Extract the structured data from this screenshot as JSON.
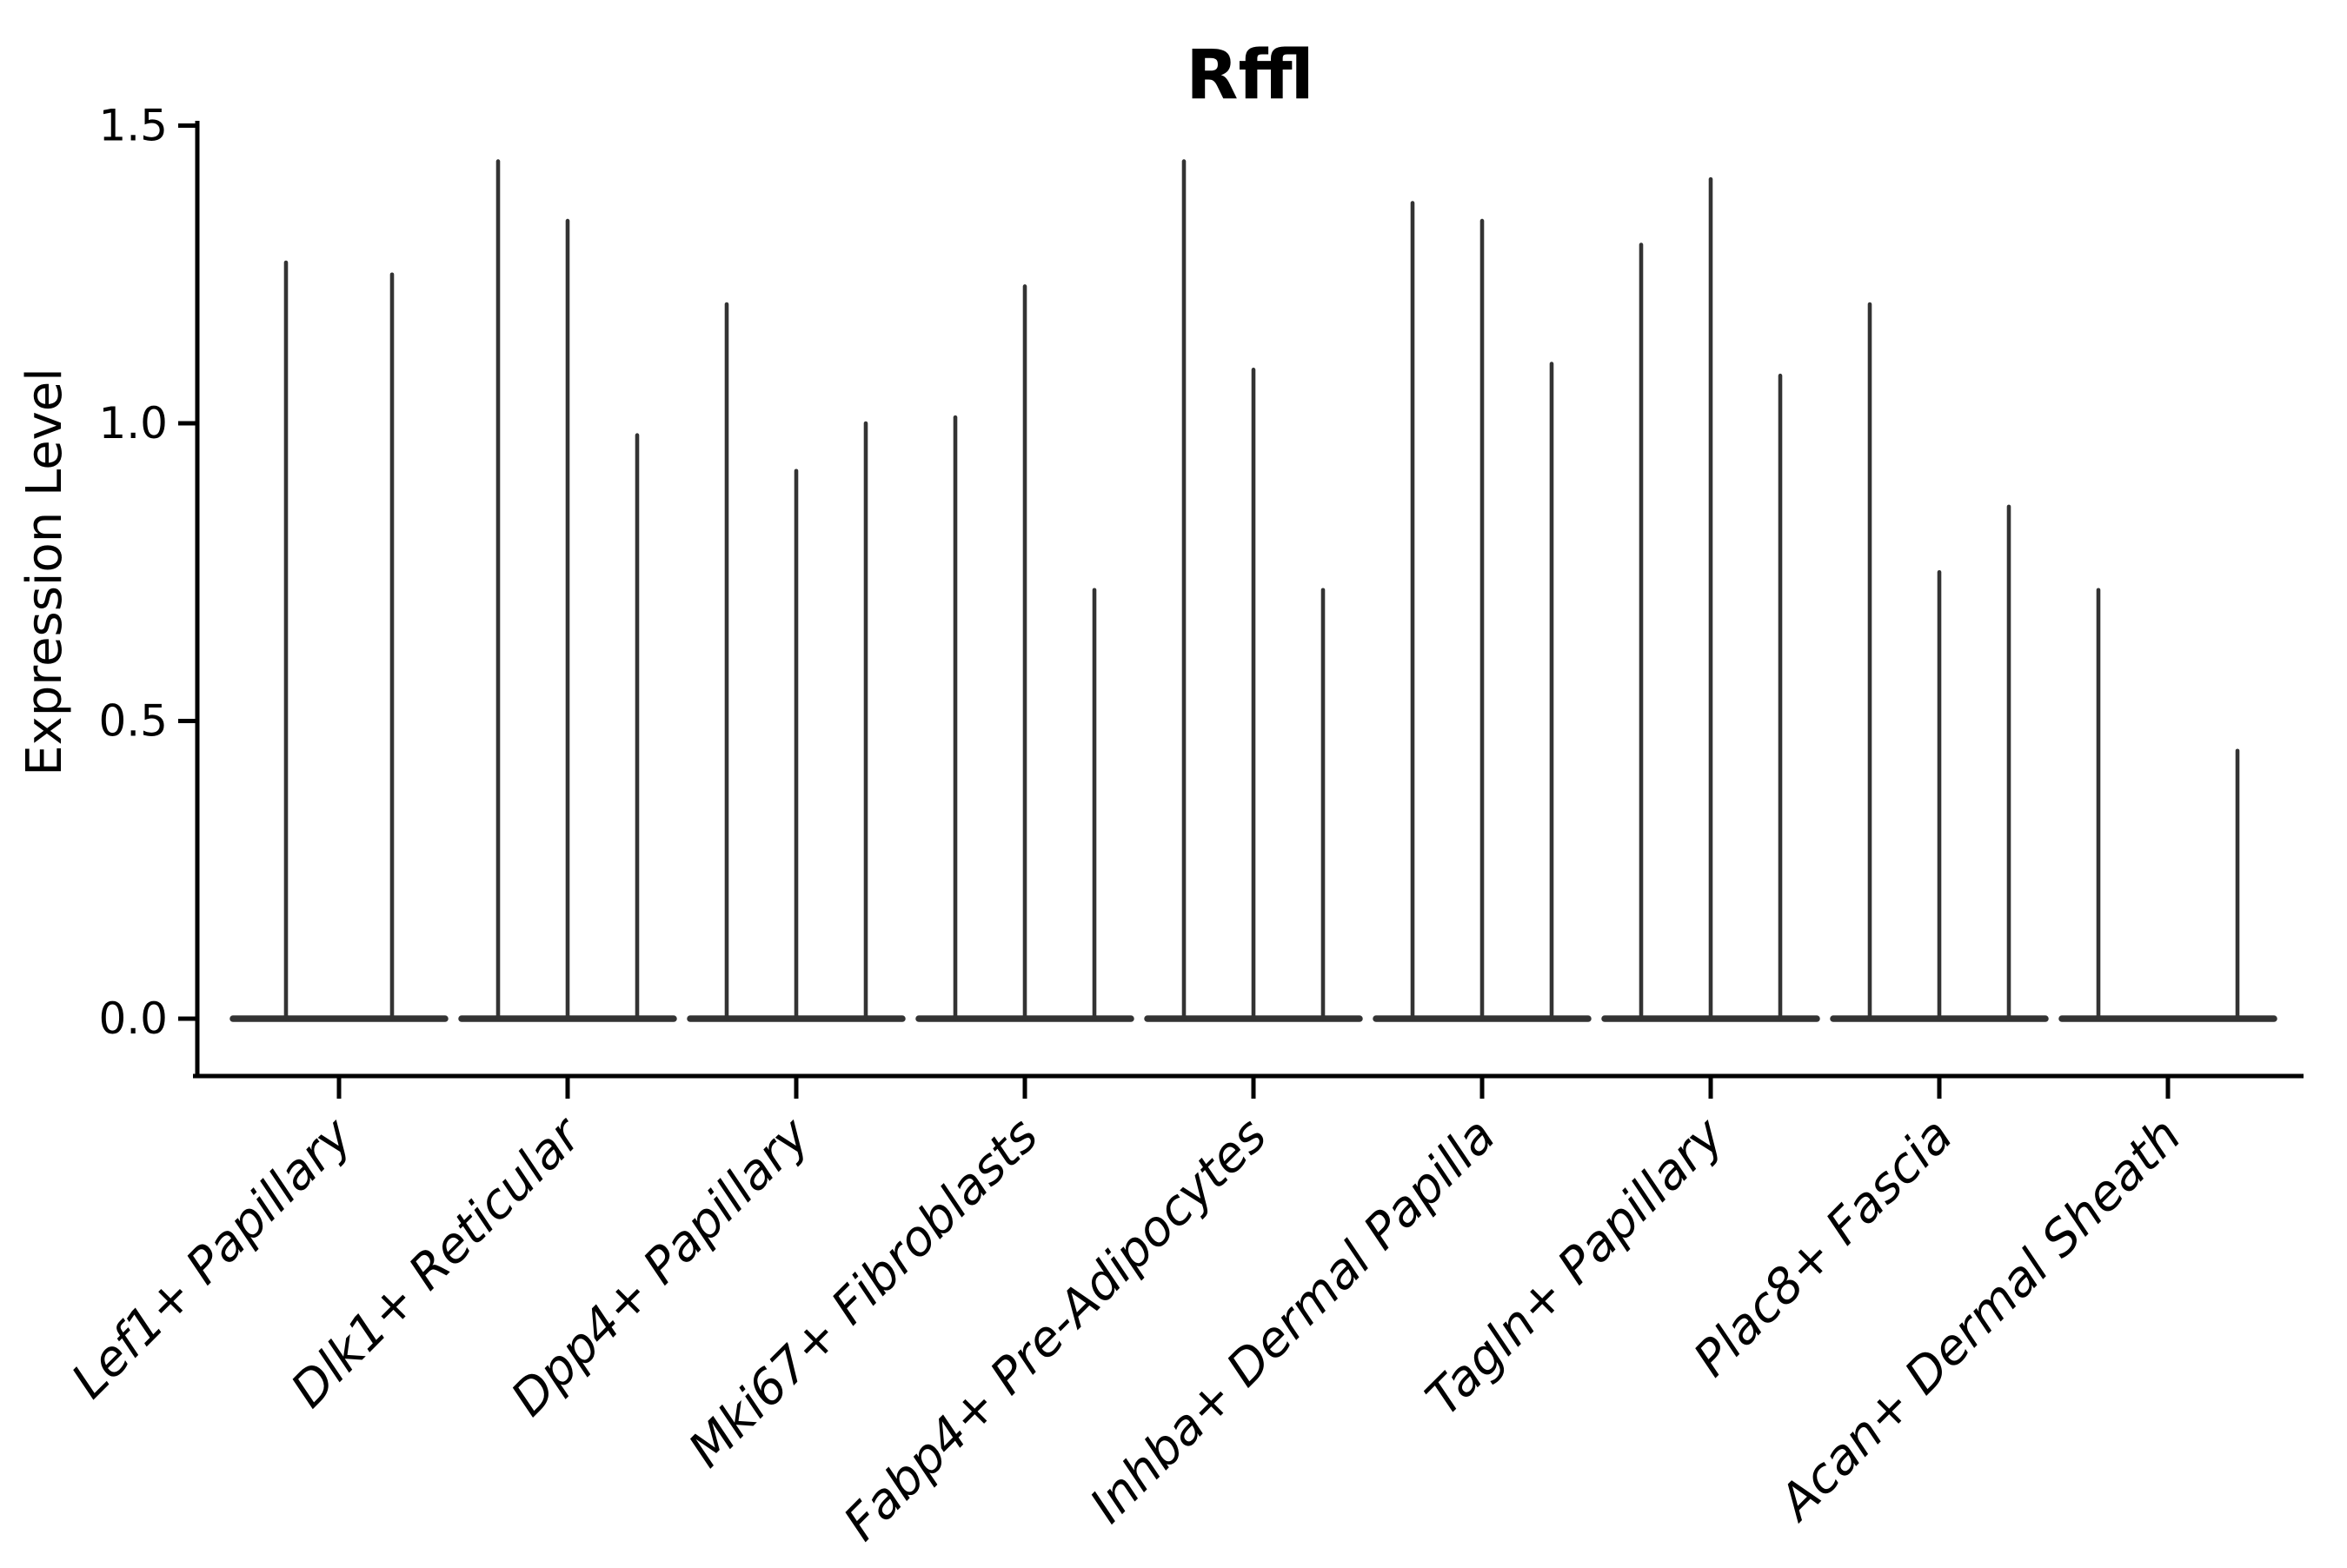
{
  "title": "Rffl",
  "y_axis": {
    "label": "Expression Level",
    "tick_labels": [
      "0.0",
      "0.5",
      "1.0",
      "1.5"
    ]
  },
  "chart_data": {
    "type": "violin",
    "title": "Rffl",
    "xlabel": "",
    "ylabel": "Expression Level",
    "ylim": [
      0,
      1.5
    ],
    "yticks": [
      0.0,
      0.5,
      1.0,
      1.5
    ],
    "grid": false,
    "legend": false,
    "categories": [
      "Lef1+ Papillary",
      "Dlk1+ Reticular",
      "Dpp4+ Papillary",
      "Mki67+ Fibroblasts",
      "Fabp4+ Pre-Adipocytes",
      "Inhba+ Dermal Papilla",
      "Tagln+ Papillary",
      "Plac8+ Fascia",
      "Acan+ Dermal Sheath"
    ],
    "violins_per_category": 3,
    "violin_max_values": [
      [
        1.27,
        null,
        1.25
      ],
      [
        1.44,
        1.34,
        0.98
      ],
      [
        1.2,
        0.92,
        1.0
      ],
      [
        1.01,
        1.23,
        0.72
      ],
      [
        1.44,
        1.09,
        0.72
      ],
      [
        1.37,
        1.34,
        1.1
      ],
      [
        1.3,
        1.41,
        1.08
      ],
      [
        1.2,
        0.75,
        0.86
      ],
      [
        0.72,
        0.0,
        0.45
      ]
    ],
    "violin_min": 0,
    "style": {
      "violin_color": "#333333",
      "axis_color": "#000000",
      "background": "#ffffff"
    }
  }
}
